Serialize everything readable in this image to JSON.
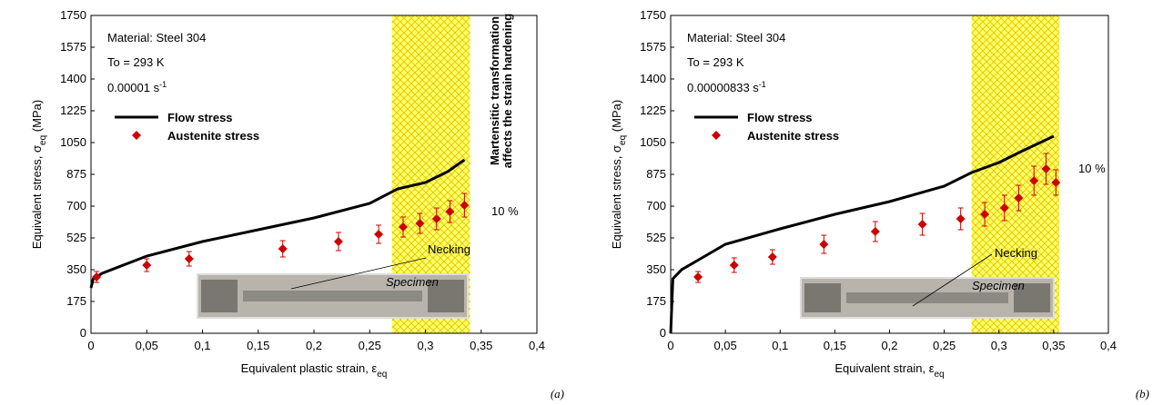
{
  "chart_data": [
    {
      "type": "line",
      "panel": "(a)",
      "xlabel": [
        "Equivalent plastic strain, ε",
        "eq"
      ],
      "ylabel": [
        "Equivalent stress, σ",
        "eq",
        " (MPa)"
      ],
      "material": "Material: Steel 304",
      "temperature": "To = 293 K",
      "strain_rate": [
        "0.00001 s",
        "-1"
      ],
      "necking": "Necking",
      "specimen": "Specimen",
      "percent": "10 %",
      "note": [
        "Martensitic transformation",
        "affects the strain hardening"
      ],
      "shade": {
        "x": [
          0.27,
          0.34
        ],
        "color": "#ffff66"
      },
      "xlim": [
        0,
        0.4
      ],
      "ylim": [
        0,
        1750
      ],
      "xticks": [
        0,
        {
          "value": 0.05,
          "label": "0,05"
        },
        {
          "value": 0.1,
          "label": "0,1"
        },
        {
          "value": 0.15,
          "label": "0,15"
        },
        {
          "value": 0.2,
          "label": "0,2"
        },
        {
          "value": 0.25,
          "label": "0,25"
        },
        {
          "value": 0.3,
          "label": "0,3"
        },
        {
          "value": 0.35,
          "label": "0,35"
        },
        {
          "value": 0.4,
          "label": "0,4"
        }
      ],
      "yticks": [
        0,
        175,
        350,
        525,
        700,
        875,
        1050,
        1225,
        1400,
        1575,
        1750
      ],
      "series": [
        {
          "name": "Flow stress",
          "color": "#000000",
          "style": "line",
          "x": [
            0,
            0.002,
            0.01,
            0.05,
            0.1,
            0.15,
            0.2,
            0.25,
            0.275,
            0.3,
            0.32,
            0.335
          ],
          "values": [
            250,
            300,
            330,
            425,
            505,
            570,
            635,
            715,
            795,
            830,
            890,
            955
          ]
        },
        {
          "name": "Austenite stress",
          "color": "#cc0000",
          "style": "markers",
          "x": [
            0.005,
            0.05,
            0.088,
            0.172,
            0.222,
            0.258,
            0.28,
            0.295,
            0.31,
            0.322,
            0.335
          ],
          "values": [
            310,
            375,
            410,
            465,
            505,
            545,
            585,
            605,
            630,
            670,
            705
          ],
          "errors": [
            30,
            35,
            40,
            45,
            50,
            50,
            55,
            55,
            60,
            60,
            65
          ]
        }
      ]
    },
    {
      "type": "line",
      "panel": "(b)",
      "xlabel": [
        "Equivalent strain, ε",
        "eq"
      ],
      "ylabel": [
        "Equivalent stress, σ",
        "eq",
        " (MPa)"
      ],
      "material": "Material: Steel 304",
      "temperature": "To = 293 K",
      "strain_rate": [
        "0.00000833 s",
        "-1"
      ],
      "necking": "Necking",
      "specimen": "Specimen",
      "percent": "10 %",
      "shade": {
        "x": [
          0.275,
          0.355
        ],
        "color": "#ffff66"
      },
      "xlim": [
        0,
        0.4
      ],
      "ylim": [
        0,
        1750
      ],
      "xticks": [
        0,
        {
          "value": 0.05,
          "label": "0,05"
        },
        {
          "value": 0.1,
          "label": "0,1"
        },
        {
          "value": 0.15,
          "label": "0,15"
        },
        {
          "value": 0.2,
          "label": "0,2"
        },
        {
          "value": 0.25,
          "label": "0,25"
        },
        {
          "value": 0.3,
          "label": "0,3"
        },
        {
          "value": 0.35,
          "label": "0,35"
        },
        {
          "value": 0.4,
          "label": "0,4"
        }
      ],
      "yticks": [
        0,
        175,
        350,
        525,
        700,
        875,
        1050,
        1225,
        1400,
        1575,
        1750
      ],
      "series": [
        {
          "name": "Flow stress",
          "color": "#000000",
          "style": "line",
          "x": [
            0,
            0.002,
            0.01,
            0.05,
            0.1,
            0.15,
            0.2,
            0.25,
            0.275,
            0.3,
            0.32,
            0.35
          ],
          "values": [
            0,
            300,
            350,
            490,
            575,
            655,
            725,
            810,
            885,
            940,
            1000,
            1085
          ]
        },
        {
          "name": "Austenite stress",
          "color": "#cc0000",
          "style": "markers",
          "x": [
            0.025,
            0.058,
            0.093,
            0.14,
            0.187,
            0.23,
            0.265,
            0.287,
            0.305,
            0.318,
            0.332,
            0.343,
            0.352
          ],
          "values": [
            310,
            375,
            420,
            490,
            560,
            600,
            630,
            655,
            690,
            745,
            840,
            905,
            830
          ],
          "errors": [
            30,
            40,
            40,
            50,
            55,
            60,
            60,
            65,
            70,
            70,
            80,
            85,
            70
          ]
        }
      ]
    }
  ]
}
